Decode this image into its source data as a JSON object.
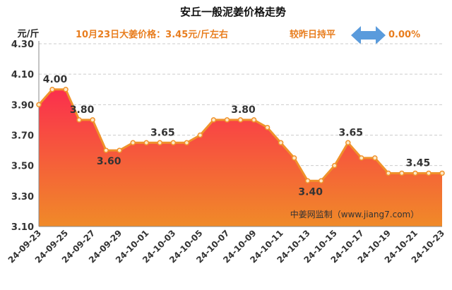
{
  "chart_data": {
    "type": "area",
    "title": "安丘一般泥姜价格走势",
    "ylabel": "元/斤",
    "subtitle_price": "10月23日大姜价格：3.45元/斤左右",
    "subtitle_change_label": "较昨日持平",
    "subtitle_change_value": "0.00%",
    "watermark": "中姜网监制（www.jiang7.com）",
    "ylim": [
      3.1,
      4.3
    ],
    "yticks": [
      "3.10",
      "3.30",
      "3.50",
      "3.70",
      "3.90",
      "4.10",
      "4.30"
    ],
    "xticks": [
      "24-09-23",
      "24-09-25",
      "24-09-27",
      "24-09-29",
      "24-10-01",
      "24-10-03",
      "24-10-05",
      "24-10-07",
      "24-10-09",
      "24-10-11",
      "24-10-13",
      "24-10-15",
      "24-10-17",
      "24-10-19",
      "24-10-21",
      "24-10-23"
    ],
    "values": [
      3.9,
      4.0,
      4.0,
      3.8,
      3.8,
      3.6,
      3.6,
      3.65,
      3.65,
      3.65,
      3.65,
      3.65,
      3.7,
      3.8,
      3.8,
      3.8,
      3.8,
      3.75,
      3.65,
      3.55,
      3.4,
      3.4,
      3.5,
      3.65,
      3.55,
      3.55,
      3.45,
      3.45,
      3.45,
      3.45,
      3.45
    ],
    "data_labels": [
      {
        "index": 1,
        "text": "4.00"
      },
      {
        "index": 3,
        "text": "3.80"
      },
      {
        "index": 5,
        "text": "3.60"
      },
      {
        "index": 9,
        "text": "3.65"
      },
      {
        "index": 15,
        "text": "3.80"
      },
      {
        "index": 20,
        "text": "3.40"
      },
      {
        "index": 23,
        "text": "3.65"
      },
      {
        "index": 28,
        "text": "3.45"
      }
    ],
    "colors": {
      "line": "#f0922b",
      "fill_top": "#fb2f4d",
      "fill_bottom": "#f08a28",
      "marker_fill": "#fde9c7",
      "grid": "#cccccc",
      "arrow": "#5a9bdc"
    }
  }
}
